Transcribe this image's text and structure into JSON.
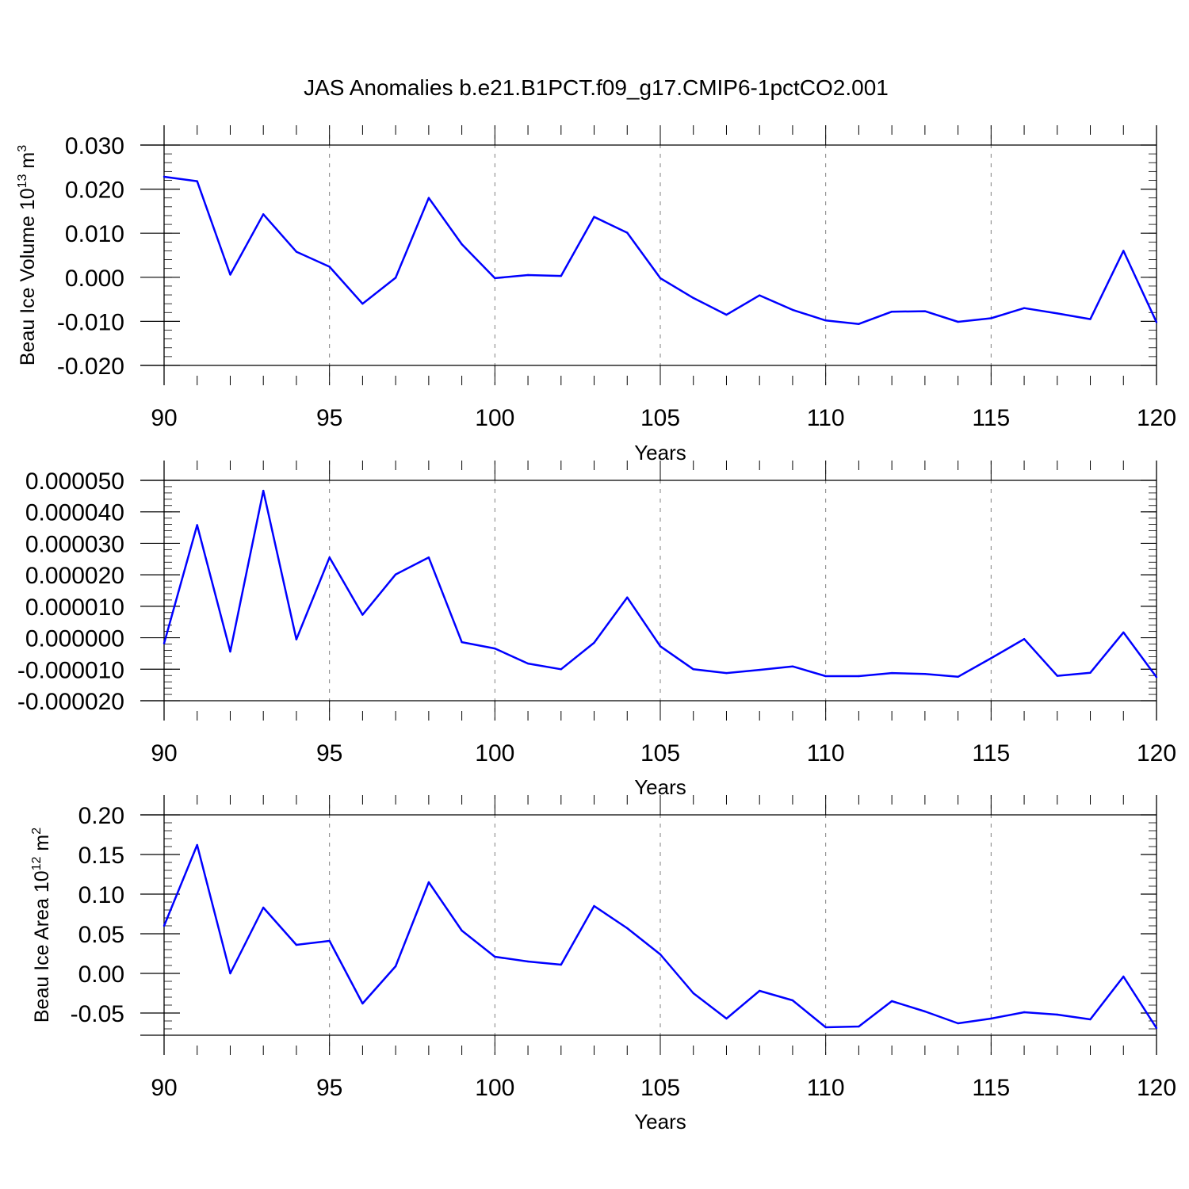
{
  "title": "JAS Anomalies b.e21.B1PCT.f09_g17.CMIP6-1pctCO2.001",
  "colors": {
    "series": "#0000ff",
    "axis": "#000000",
    "grid": "#808080",
    "background": "#ffffff"
  },
  "chart_data": [
    {
      "type": "line",
      "ylabel": {
        "main": "Beau Ice Volume 10",
        "sup": "13",
        "unit": " m",
        "unit_sup": "3"
      },
      "xlabel": "Years",
      "xlim": [
        90,
        120
      ],
      "ylim": [
        -0.02,
        0.03
      ],
      "xticks": [
        90,
        95,
        100,
        105,
        110,
        115,
        120
      ],
      "yticks": [
        -0.02,
        -0.01,
        0.0,
        0.01,
        0.02,
        0.03
      ],
      "ytick_labels": [
        "-0.020",
        "-0.010",
        "0.000",
        "0.010",
        "0.020",
        "0.030"
      ],
      "grid": "vertical dashed at major x ticks",
      "x": [
        90,
        91,
        92,
        93,
        94,
        95,
        96,
        97,
        98,
        99,
        100,
        101,
        102,
        103,
        104,
        105,
        106,
        107,
        108,
        109,
        110,
        111,
        112,
        113,
        114,
        115,
        116,
        117,
        118,
        119,
        120
      ],
      "y": [
        0.0228,
        0.0218,
        0.0006,
        0.0143,
        0.0058,
        0.0024,
        -0.006,
        -0.0001,
        0.018,
        0.0075,
        -0.0002,
        0.0005,
        0.0003,
        0.0137,
        0.0101,
        -0.0002,
        -0.0047,
        -0.0085,
        -0.0041,
        -0.0074,
        -0.0098,
        -0.0106,
        -0.0078,
        -0.0077,
        -0.0101,
        -0.0093,
        -0.007,
        -0.0082,
        -0.0095,
        0.006,
        -0.0102
      ]
    },
    {
      "type": "line",
      "ylabel": null,
      "xlabel": "Years",
      "xlim": [
        90,
        120
      ],
      "ylim": [
        -2e-05,
        5e-05
      ],
      "xticks": [
        90,
        95,
        100,
        105,
        110,
        115,
        120
      ],
      "yticks": [
        -2e-05,
        -1e-05,
        0.0,
        1e-05,
        2e-05,
        3e-05,
        4e-05,
        5e-05
      ],
      "ytick_labels": [
        "-0.000020",
        "-0.000010",
        "0.000000",
        "0.000010",
        "0.000020",
        "0.000030",
        "0.000040",
        "0.000050"
      ],
      "grid": "vertical dashed at major x ticks",
      "x": [
        90,
        91,
        92,
        93,
        94,
        95,
        96,
        97,
        98,
        99,
        100,
        101,
        102,
        103,
        104,
        105,
        106,
        107,
        108,
        109,
        110,
        111,
        112,
        113,
        114,
        115,
        116,
        117,
        118,
        119,
        120
      ],
      "y": [
        -1.8e-06,
        3.58e-05,
        -4.4e-06,
        4.67e-05,
        -5e-07,
        2.55e-05,
        7.3e-06,
        2.01e-05,
        2.55e-05,
        -1.4e-06,
        -3.4e-06,
        -8.2e-06,
        -1e-05,
        -1.6e-06,
        1.28e-05,
        -2.7e-06,
        -1e-05,
        -1.12e-05,
        -1.02e-05,
        -9.1e-06,
        -1.22e-05,
        -1.22e-05,
        -1.12e-05,
        -1.15e-05,
        -1.24e-05,
        -6.5e-06,
        -4e-07,
        -1.21e-05,
        -1.11e-05,
        1.7e-06,
        -1.25e-05
      ]
    },
    {
      "type": "line",
      "ylabel": {
        "main": "Beau Ice Area 10",
        "sup": "12",
        "unit": " m",
        "unit_sup": "2"
      },
      "xlabel": "Years",
      "xlim": [
        90,
        120
      ],
      "ylim": [
        -0.078,
        0.2
      ],
      "xticks": [
        90,
        95,
        100,
        105,
        110,
        115,
        120
      ],
      "yticks": [
        -0.05,
        0.0,
        0.05,
        0.1,
        0.15,
        0.2
      ],
      "ytick_labels": [
        "-0.05",
        "0.00",
        "0.05",
        "0.10",
        "0.15",
        "0.20"
      ],
      "grid": "vertical dashed at major x ticks",
      "x": [
        90,
        91,
        92,
        93,
        94,
        95,
        96,
        97,
        98,
        99,
        100,
        101,
        102,
        103,
        104,
        105,
        106,
        107,
        108,
        109,
        110,
        111,
        112,
        113,
        114,
        115,
        116,
        117,
        118,
        119,
        120
      ],
      "y": [
        0.06,
        0.162,
        0.0,
        0.083,
        0.036,
        0.041,
        -0.038,
        0.009,
        0.115,
        0.054,
        0.021,
        0.015,
        0.011,
        0.085,
        0.057,
        0.024,
        -0.025,
        -0.057,
        -0.022,
        -0.034,
        -0.068,
        -0.067,
        -0.035,
        -0.048,
        -0.063,
        -0.057,
        -0.049,
        -0.052,
        -0.058,
        -0.004,
        -0.069
      ]
    }
  ]
}
